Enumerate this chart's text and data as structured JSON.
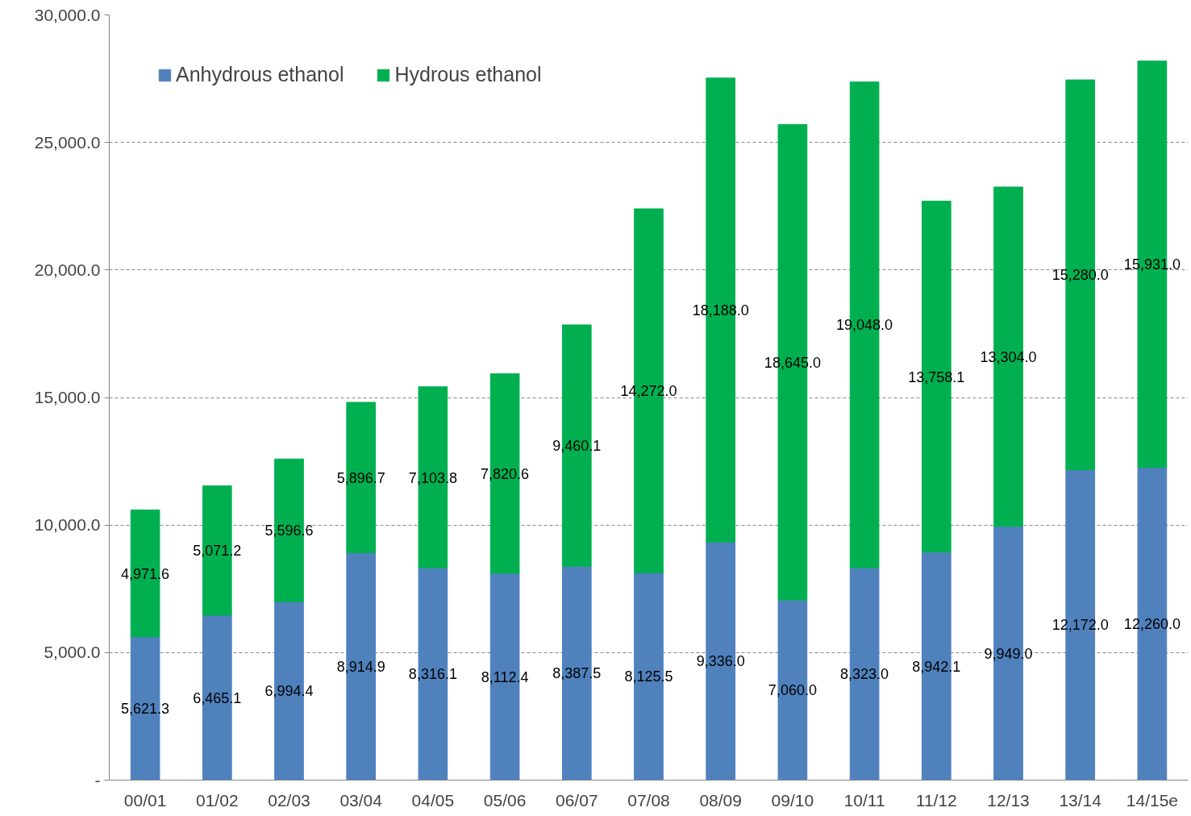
{
  "chart_data": {
    "type": "bar",
    "stacked": true,
    "categories": [
      "00/01",
      "01/02",
      "02/03",
      "03/04",
      "04/05",
      "05/06",
      "06/07",
      "07/08",
      "08/09",
      "09/10",
      "10/11",
      "11/12",
      "12/13",
      "13/14",
      "14/15e"
    ],
    "series": [
      {
        "name": "Anhydrous ethanol",
        "color": "#4f81bd",
        "values": [
          5621.3,
          6465.1,
          6994.4,
          8914.9,
          8316.1,
          8112.4,
          8387.5,
          8125.5,
          9336.0,
          7060.0,
          8323.0,
          8942.1,
          9949.0,
          12172.0,
          12260.0
        ],
        "value_labels": [
          "5,621.3",
          "6,465.1",
          "6,994.4",
          "8,914.9",
          "8,316.1",
          "8,112.4",
          "8,387.5",
          "8,125.5",
          "9,336.0",
          "7,060.0",
          "8,323.0",
          "8,942.1",
          "9,949.0",
          "12,172.0",
          "12,260.0"
        ]
      },
      {
        "name": "Hydrous ethanol",
        "color": "#00b050",
        "values": [
          4971.6,
          5071.2,
          5596.6,
          5896.7,
          7103.8,
          7820.6,
          9460.1,
          14272.0,
          18188.0,
          18645.0,
          19048.0,
          13758.1,
          13304.0,
          15280.0,
          15931.0
        ],
        "value_labels": [
          "4,971.6",
          "5,071.2",
          "5,596.6",
          "5,896.7",
          "7,103.8",
          "7,820.6",
          "9,460.1",
          "14,272.0",
          "18,188.0",
          "18,645.0",
          "19,048.0",
          "13,758.1",
          "13,304.0",
          "15,280.0",
          "15,931.0"
        ]
      }
    ],
    "ylim": [
      0,
      30000
    ],
    "yticks": [
      {
        "value": 0,
        "label": "-"
      },
      {
        "value": 5000,
        "label": "5,000.0"
      },
      {
        "value": 10000,
        "label": "10,000.0"
      },
      {
        "value": 15000,
        "label": "15,000.0"
      },
      {
        "value": 20000,
        "label": "20,000.0"
      },
      {
        "value": 25000,
        "label": "25,000.0"
      },
      {
        "value": 30000,
        "label": "30,000.0"
      }
    ],
    "grid": "y",
    "legend": "top left"
  }
}
